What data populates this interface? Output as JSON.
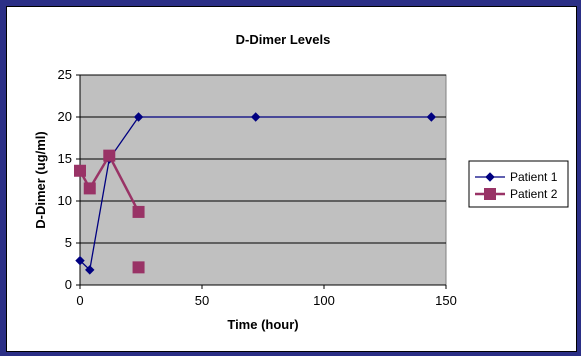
{
  "chart_data": {
    "type": "line",
    "title": "D-Dimer Levels",
    "xlabel": "Time (hour)",
    "ylabel": "D-Dimer (ug/ml)",
    "xlim": [
      0,
      150
    ],
    "ylim": [
      0,
      25
    ],
    "xticks": [
      0,
      50,
      100,
      150
    ],
    "yticks": [
      0,
      5,
      10,
      15,
      20,
      25
    ],
    "grid": "horizontal",
    "plot_background": "#c0c0c0",
    "legend_position": "right",
    "series": [
      {
        "name": "Patient 1",
        "color": "#000080",
        "marker": "diamond",
        "line": true,
        "points": [
          [
            0,
            2.9
          ],
          [
            4,
            1.8
          ],
          [
            12,
            15.0
          ],
          [
            24,
            20.0
          ],
          [
            72,
            20.0
          ],
          [
            144,
            20.0
          ]
        ]
      },
      {
        "name": "Patient 2",
        "color": "#993366",
        "marker": "square",
        "line": true,
        "points": [
          [
            0,
            13.6
          ],
          [
            4,
            11.5
          ],
          [
            12,
            15.4
          ],
          [
            24,
            8.7
          ]
        ],
        "extra_points": [
          [
            24,
            2.1
          ]
        ]
      }
    ]
  }
}
